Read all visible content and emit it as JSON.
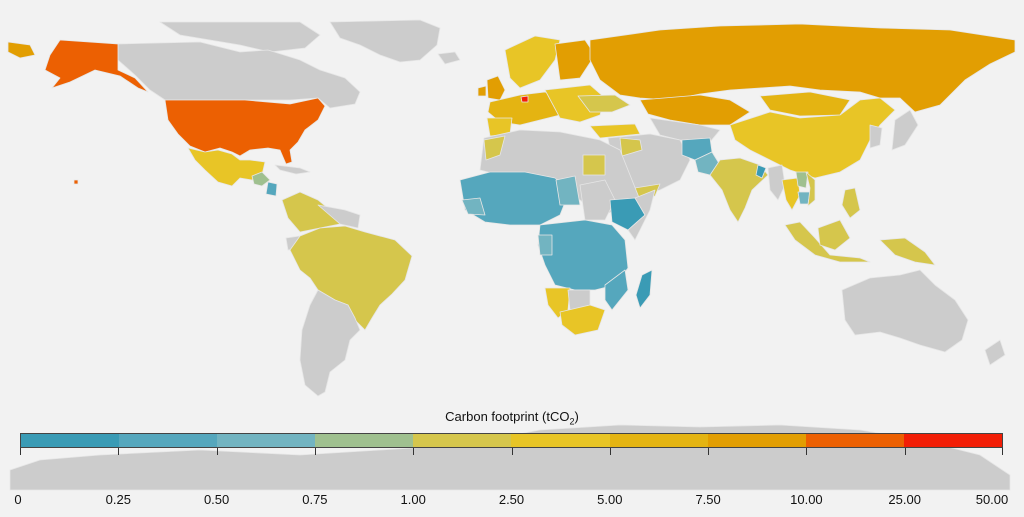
{
  "legend": {
    "title_main": "Carbon footprint (tCO",
    "title_sub": "2",
    "title_end": ")",
    "bins": [
      {
        "from": "0",
        "to": "0.25",
        "color": "#3a9bb5"
      },
      {
        "from": "0.25",
        "to": "0.50",
        "color": "#55a7bd"
      },
      {
        "from": "0.50",
        "to": "0.75",
        "color": "#72b4c1"
      },
      {
        "from": "0.75",
        "to": "1.00",
        "color": "#9fc08f"
      },
      {
        "from": "1.00",
        "to": "2.50",
        "color": "#d5c64c"
      },
      {
        "from": "2.50",
        "to": "5.00",
        "color": "#e8c526"
      },
      {
        "from": "5.00",
        "to": "7.50",
        "color": "#e4b412"
      },
      {
        "from": "7.50",
        "to": "10.00",
        "color": "#e29e02"
      },
      {
        "from": "10.00",
        "to": "25.00",
        "color": "#ec6002"
      },
      {
        "from": "25.00",
        "to": "50.00",
        "color": "#f21e06"
      }
    ],
    "tick_labels": [
      "0",
      "0.25",
      "0.50",
      "0.75",
      "1.00",
      "2.50",
      "5.00",
      "7.50",
      "10.00",
      "25.00",
      "50.00"
    ]
  },
  "colors": {
    "background": "#f2f2f2",
    "no_data": "#cccccc",
    "border": "#e0e0e0"
  },
  "chart_data": {
    "type": "choropleth",
    "title": "Carbon footprint (tCO2)",
    "legend_position": "bottom",
    "bin_edges": [
      0,
      0.25,
      0.5,
      0.75,
      1.0,
      2.5,
      5.0,
      7.5,
      10.0,
      25.0,
      50.0
    ],
    "regions": [
      {
        "name": "United States",
        "bin": "10.00-25.00"
      },
      {
        "name": "Alaska (USA)",
        "bin": "10.00-25.00"
      },
      {
        "name": "Canada",
        "bin": "no data"
      },
      {
        "name": "Greenland",
        "bin": "no data"
      },
      {
        "name": "Mexico",
        "bin": "2.50-5.00"
      },
      {
        "name": "Central America",
        "bin": "0.25-1.00 / 2.50-5.00"
      },
      {
        "name": "Brazil",
        "bin": "1.00-2.50"
      },
      {
        "name": "Colombia / Venezuela / Peru / Bolivia",
        "bin": "1.00-2.50"
      },
      {
        "name": "Argentina / Chile",
        "bin": "no data"
      },
      {
        "name": "Russia",
        "bin": "7.50-10.00"
      },
      {
        "name": "Kazakhstan",
        "bin": "7.50-10.00"
      },
      {
        "name": "Mongolia",
        "bin": "5.00-7.50"
      },
      {
        "name": "China",
        "bin": "2.50-5.00"
      },
      {
        "name": "India",
        "bin": "1.00-2.50"
      },
      {
        "name": "Afghanistan / Pakistan",
        "bin": "0.25-0.75"
      },
      {
        "name": "Western Europe",
        "bin": "5.00-10.00"
      },
      {
        "name": "Eastern Europe",
        "bin": "1.00-5.00"
      },
      {
        "name": "Turkey",
        "bin": "2.50-5.00"
      },
      {
        "name": "West & Central Africa",
        "bin": "0-0.75"
      },
      {
        "name": "Ethiopia",
        "bin": "0-0.25"
      },
      {
        "name": "Madagascar",
        "bin": "0-0.25"
      },
      {
        "name": "Namibia / South Africa",
        "bin": "2.50-5.00"
      },
      {
        "name": "Southeast Asia",
        "bin": "1.00-5.00"
      },
      {
        "name": "Indonesia / Papua New Guinea",
        "bin": "1.00-2.50"
      },
      {
        "name": "Middle East / North Africa",
        "bin": "no data"
      },
      {
        "name": "Australia",
        "bin": "no data"
      },
      {
        "name": "Japan / Korea",
        "bin": "no data"
      },
      {
        "name": "Antarctica",
        "bin": "no data"
      }
    ]
  }
}
